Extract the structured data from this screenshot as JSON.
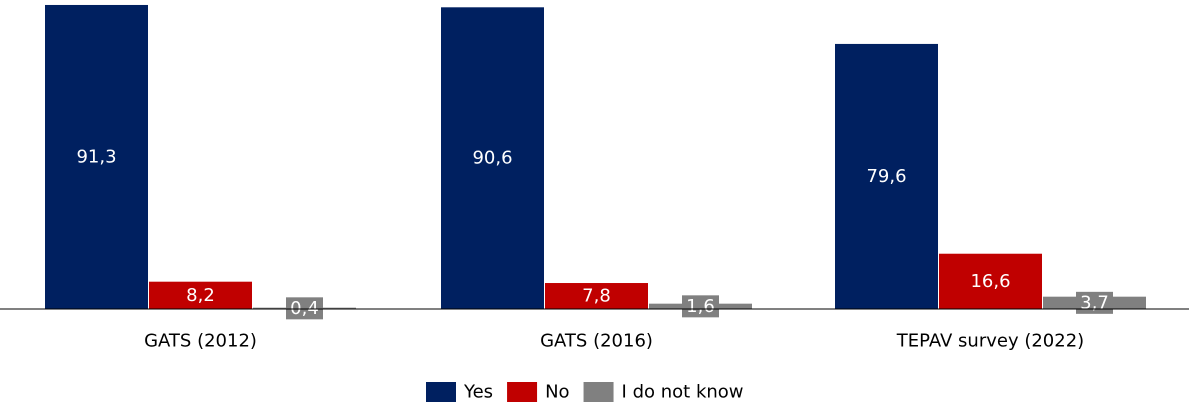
{
  "chart_data": {
    "type": "bar",
    "categories": [
      "GATS (2012)",
      "GATS (2016)",
      "TEPAV survey (2022)"
    ],
    "series": [
      {
        "name": "Yes",
        "color": "#002060",
        "values": [
          91.3,
          90.6,
          79.6
        ],
        "labels": [
          "91,3",
          "90,6",
          "79,6"
        ]
      },
      {
        "name": "No",
        "color": "#C00000",
        "values": [
          8.2,
          7.8,
          16.6
        ],
        "labels": [
          "8,2",
          "7,8",
          "16,6"
        ]
      },
      {
        "name": "I do not know",
        "color": "#808080",
        "values": [
          0.4,
          1.6,
          3.7
        ],
        "labels": [
          "0,4",
          "1,6",
          "3,7"
        ]
      }
    ],
    "ylim": [
      0,
      92
    ],
    "grid": false,
    "legend_position": "bottom"
  }
}
